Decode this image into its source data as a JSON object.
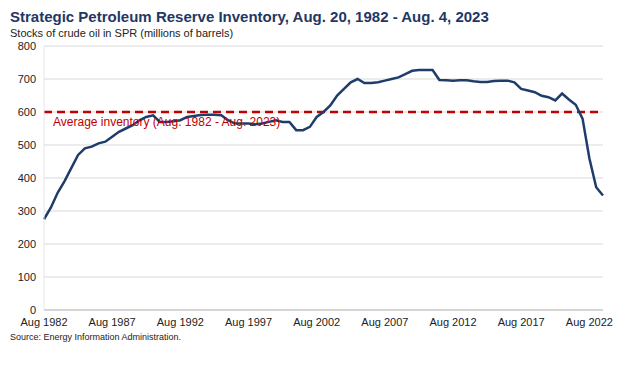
{
  "chart_data": {
    "type": "line",
    "title": "Strategic Petroleum Reserve Inventory, Aug. 20, 1982 - Aug. 4, 2023",
    "subtitle": "Stocks of crude oil in SPR (millions of barrels)",
    "source": "Source: Energy Information Administration.",
    "categories": [
      "Aug 1982",
      null,
      null,
      null,
      null,
      null,
      null,
      null,
      null,
      null,
      "Aug 1987",
      null,
      null,
      null,
      null,
      null,
      null,
      null,
      null,
      null,
      "Aug 1992",
      null,
      null,
      null,
      null,
      null,
      null,
      null,
      null,
      null,
      "Aug 1997",
      null,
      null,
      null,
      null,
      null,
      null,
      null,
      null,
      null,
      "Aug 2002",
      null,
      null,
      null,
      null,
      null,
      null,
      null,
      null,
      null,
      "Aug 2007",
      null,
      null,
      null,
      null,
      null,
      null,
      null,
      null,
      null,
      "Aug 2012",
      null,
      null,
      null,
      null,
      null,
      null,
      null,
      null,
      null,
      "Aug 2017",
      null,
      null,
      null,
      null,
      null,
      null,
      null,
      null,
      null,
      "Aug 2022",
      null,
      null
    ],
    "values": [
      275,
      310,
      355,
      390,
      430,
      470,
      490,
      495,
      505,
      510,
      525,
      540,
      550,
      560,
      575,
      585,
      590,
      570,
      570,
      572,
      575,
      585,
      588,
      591,
      592,
      592,
      590,
      575,
      565,
      565,
      565,
      563,
      565,
      570,
      575,
      570,
      570,
      545,
      545,
      555,
      585,
      600,
      620,
      650,
      670,
      690,
      700,
      688,
      688,
      690,
      695,
      700,
      705,
      715,
      725,
      727,
      727,
      727,
      697,
      696,
      695,
      696,
      696,
      693,
      691,
      691,
      694,
      695,
      695,
      690,
      670,
      665,
      660,
      649,
      645,
      635,
      656,
      638,
      622,
      580,
      460,
      372,
      347
    ],
    "color": "#1f3d6b",
    "ylim": [
      0,
      800
    ],
    "yticks": [
      0,
      100,
      200,
      300,
      400,
      500,
      600,
      700,
      800
    ],
    "grid": true,
    "reference_line": {
      "value": 600,
      "label": "Average inventory (Aug. 1982 - Aug. 2023)",
      "color": "#c00000",
      "line_style": "dashed"
    }
  }
}
